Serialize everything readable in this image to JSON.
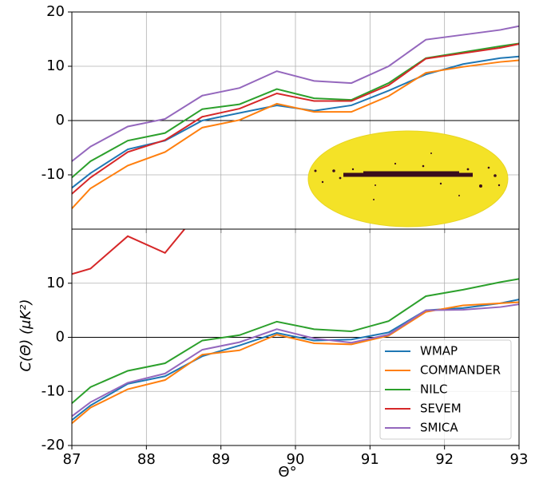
{
  "chart_data": [
    {
      "type": "line",
      "x": [
        87,
        87.25,
        87.75,
        88.25,
        88.75,
        89.25,
        89.75,
        90.25,
        90.75,
        91.25,
        91.75,
        92.25,
        92.75,
        93
      ],
      "ylim": [
        -20,
        20
      ],
      "yticks": [
        -10,
        0,
        10,
        20
      ],
      "grid": true,
      "series": [
        {
          "name": "WMAP",
          "color": "#1f77b4",
          "values": [
            -12.4,
            -9.7,
            -5.3,
            -3.7,
            0,
            1.4,
            2.8,
            1.8,
            2.8,
            5.5,
            8.5,
            10.4,
            11.5,
            11.8
          ]
        },
        {
          "name": "COMMANDER",
          "color": "#ff7f0e",
          "values": [
            -16.2,
            -12.5,
            -8.3,
            -5.8,
            -1.3,
            0.1,
            3.1,
            1.6,
            1.6,
            4.5,
            8.8,
            9.9,
            10.8,
            11.1
          ]
        },
        {
          "name": "NILC",
          "color": "#2ca02c",
          "values": [
            -10.5,
            -7.5,
            -3.7,
            -2.3,
            2.1,
            3.0,
            5.8,
            4.1,
            3.8,
            6.9,
            11.5,
            12.6,
            13.7,
            14.2
          ]
        },
        {
          "name": "SEVEM",
          "color": "#d62728",
          "values": [
            -13.5,
            -10.5,
            -5.8,
            -3.6,
            0.7,
            2.2,
            5.0,
            3.6,
            3.6,
            6.5,
            11.4,
            12.4,
            13.4,
            14.1
          ]
        },
        {
          "name": "SMICA",
          "color": "#9467bd",
          "values": [
            -7.5,
            -4.8,
            -1.1,
            0.3,
            4.6,
            6.0,
            9.1,
            7.3,
            6.9,
            10.0,
            14.9,
            15.8,
            16.7,
            17.4
          ]
        }
      ]
    },
    {
      "type": "line",
      "x": [
        87,
        87.25,
        87.75,
        88.25,
        88.75,
        89.25,
        89.75,
        90.25,
        90.75,
        91.25,
        91.75,
        92.25,
        92.75,
        93
      ],
      "xlim": [
        87,
        93
      ],
      "xticks": [
        87,
        88,
        89,
        90,
        91,
        92,
        93
      ],
      "xlabel": "Θ°",
      "ylabel": "C(Θ) (μK²)",
      "ylim": [
        -20,
        20
      ],
      "yticks": [
        -20,
        -10,
        0,
        10
      ],
      "grid": true,
      "legend": "lower right",
      "series": [
        {
          "name": "WMAP",
          "color": "#1f77b4",
          "values": [
            -15.3,
            -12.6,
            -8.6,
            -7.2,
            -3.5,
            -1.5,
            0.8,
            -0.6,
            -0.4,
            0.9,
            5.0,
            5.4,
            6.3,
            7.0
          ]
        },
        {
          "name": "COMMANDER",
          "color": "#ff7f0e",
          "values": [
            -15.9,
            -13,
            -9.6,
            -7.9,
            -3.2,
            -2.4,
            0.5,
            -1.1,
            -1.3,
            0.3,
            4.7,
            5.9,
            6.3,
            6.5
          ]
        },
        {
          "name": "NILC",
          "color": "#2ca02c",
          "values": [
            -12.2,
            -9.2,
            -6.2,
            -4.8,
            -0.6,
            0.4,
            2.9,
            1.5,
            1.1,
            3.0,
            7.6,
            8.8,
            10.2,
            10.8
          ]
        },
        {
          "name": "SEVEM",
          "color": "#d62728",
          "values": [
            11.7,
            12.7,
            18.7,
            15.6,
            24,
            null,
            null,
            null,
            null,
            null,
            null,
            null,
            null,
            null
          ]
        },
        {
          "name": "SMICA",
          "color": "#9467bd",
          "values": [
            -14.6,
            -12,
            -8.4,
            -6.7,
            -2.3,
            -0.9,
            1.5,
            -0.2,
            -1.0,
            0.5,
            5.0,
            5.1,
            5.6,
            6.1
          ]
        }
      ]
    }
  ]
}
